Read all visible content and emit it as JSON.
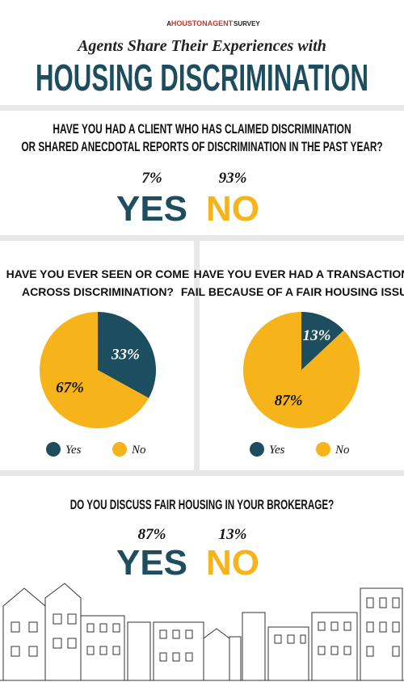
{
  "header": {
    "prefix": "A",
    "brand": "HOUSTONAGENT",
    "suffix": "SURVEY",
    "subtitle": "Agents Share Their Experiences with",
    "title": "HOUSING DISCRIMINATION"
  },
  "question1": {
    "lines": [
      "HAVE YOU HAD A CLIENT WHO HAS CLAIMED DISCRIMINATION",
      "OR SHARED ANECDOTAL REPORTS OF DISCRIMINATION IN THE PAST YEAR?"
    ],
    "answers": [
      {
        "percent": "7%",
        "label": "YES"
      },
      {
        "percent": "93%",
        "label": "NO"
      }
    ]
  },
  "chart_data": [
    {
      "type": "pie",
      "title_lines": [
        "HAVE YOU EVER SEEN OR COME",
        "ACROSS DISCRIMINATION?"
      ],
      "categories": [
        "Yes",
        "No"
      ],
      "values": [
        33,
        67
      ],
      "value_labels": [
        "33%",
        "67%"
      ],
      "colors": [
        "#1d4e5f",
        "#f6b41a"
      ]
    },
    {
      "type": "pie",
      "title_lines": [
        "HAVE YOU EVER HAD A TRANSACTION",
        "FAIL BECAUSE OF A FAIR HOUSING ISSUE?"
      ],
      "categories": [
        "Yes",
        "No"
      ],
      "values": [
        13,
        87
      ],
      "value_labels": [
        "13%",
        "87%"
      ],
      "colors": [
        "#1d4e5f",
        "#f6b41a"
      ]
    }
  ],
  "question2": {
    "lines": [
      "DO YOU DISCUSS FAIR HOUSING IN YOUR BROKERAGE?"
    ],
    "answers": [
      {
        "percent": "87%",
        "label": "YES"
      },
      {
        "percent": "13%",
        "label": "NO"
      }
    ]
  }
}
